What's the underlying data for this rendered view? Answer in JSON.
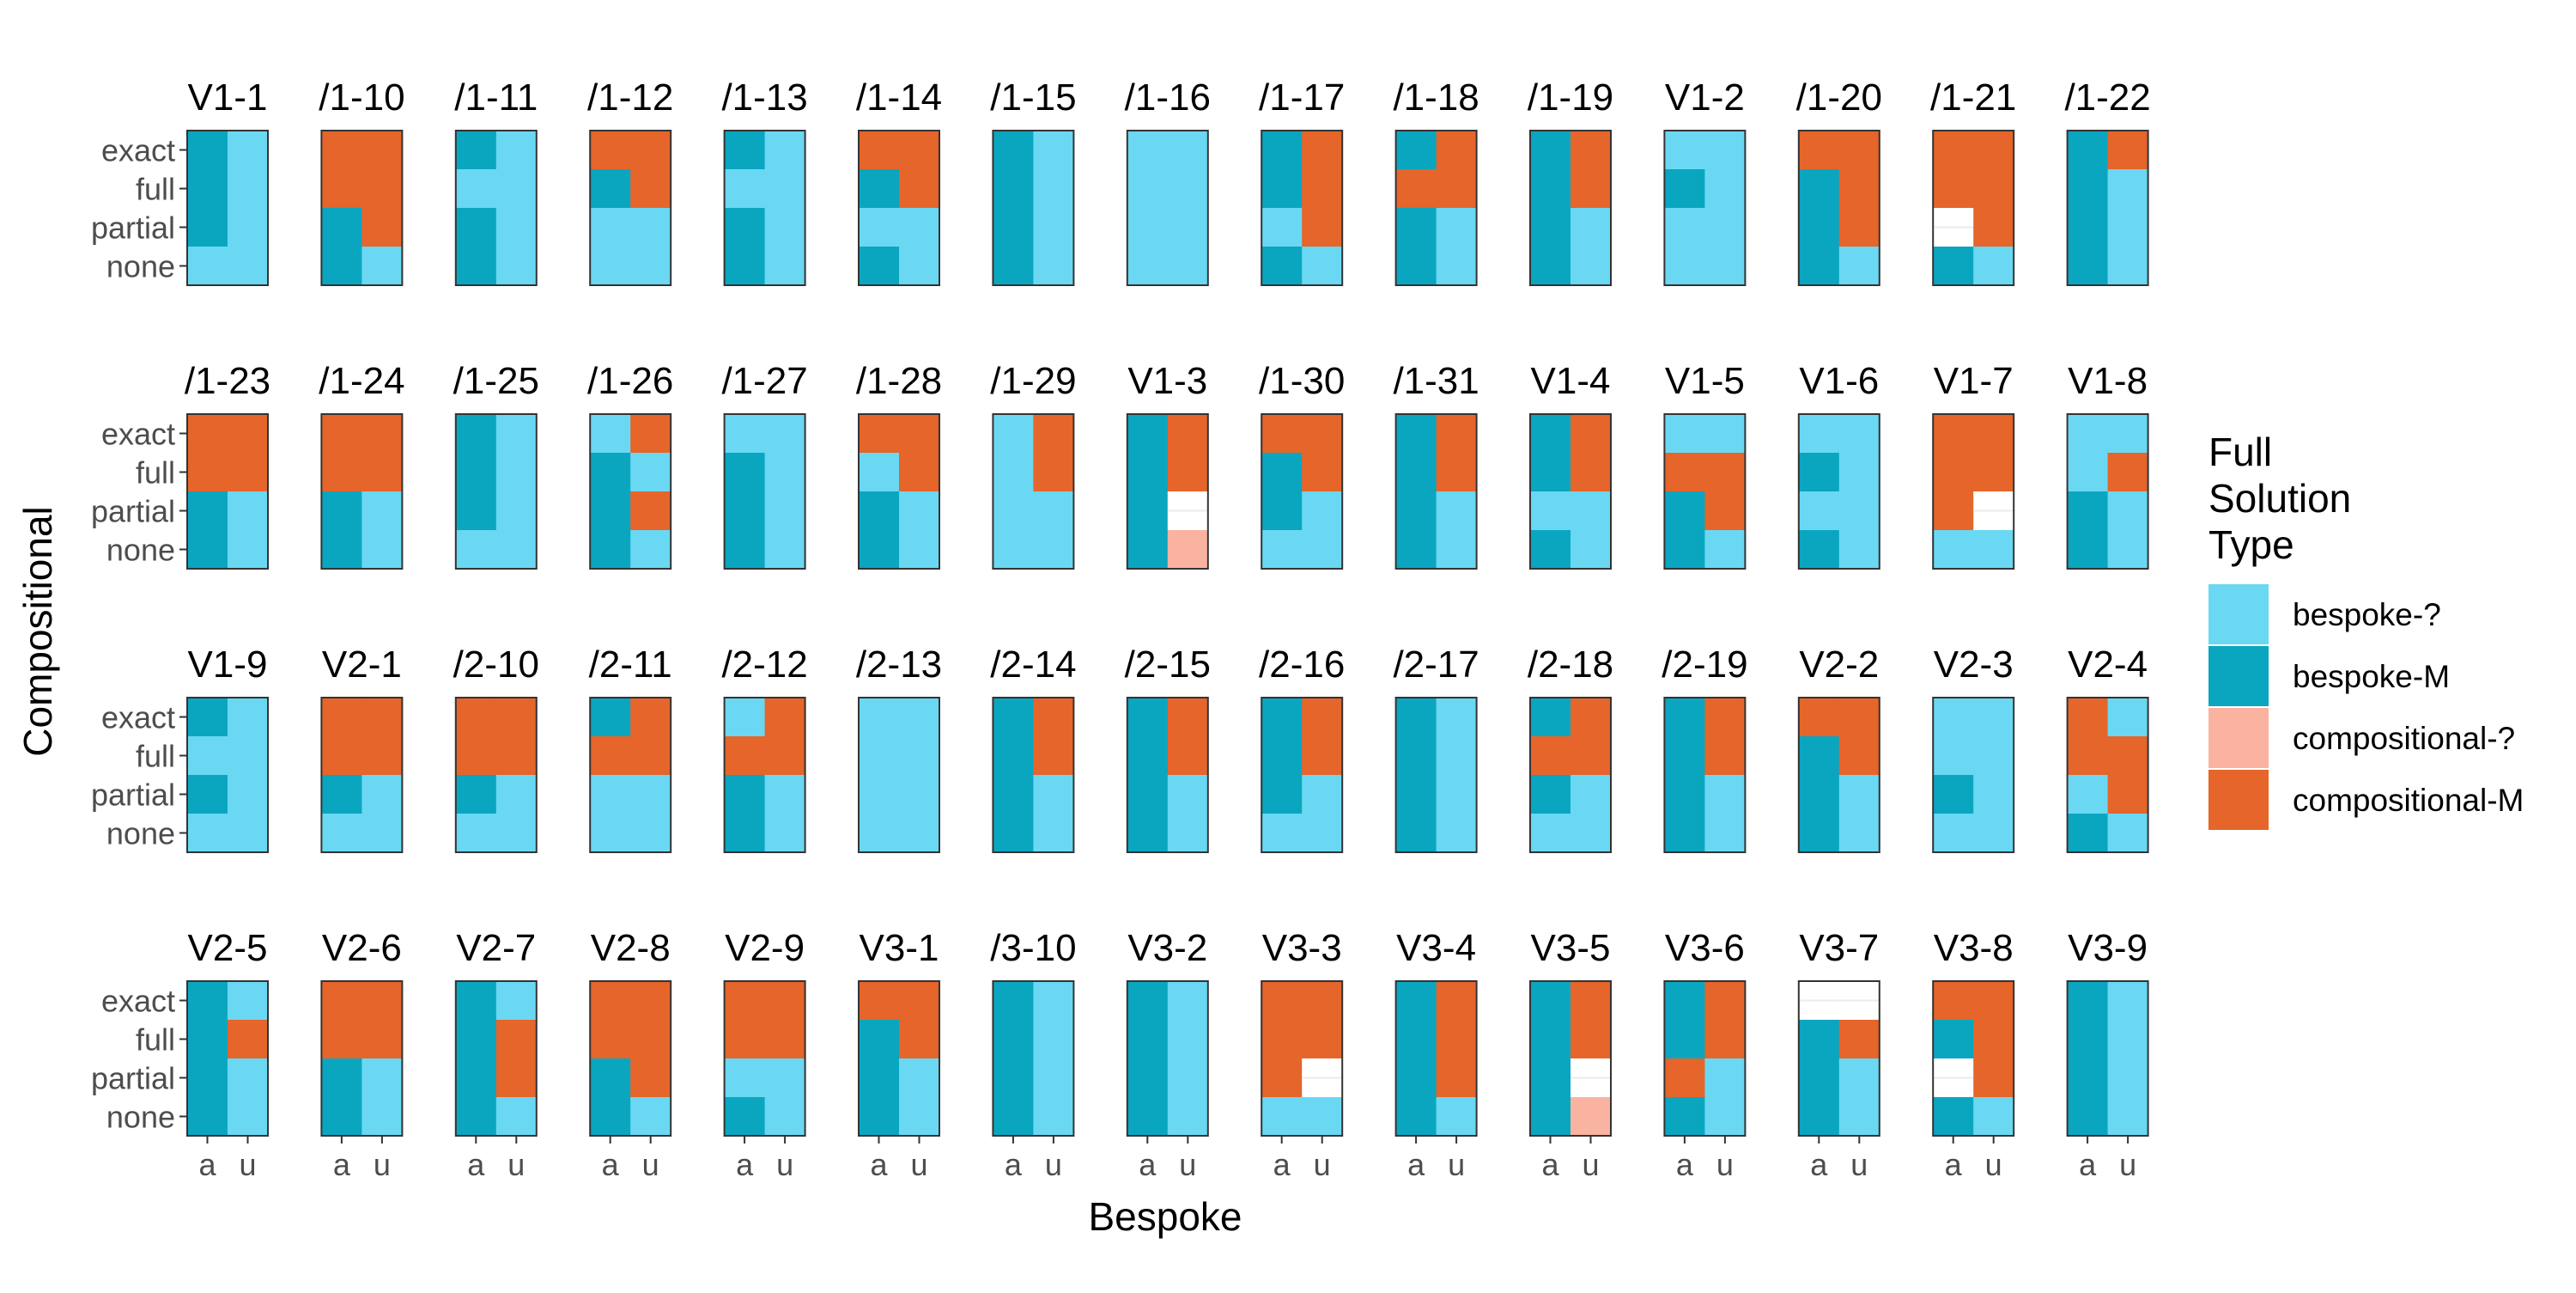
{
  "chart_data": {
    "type": "heatmap",
    "xlabel": "Bespoke",
    "ylabel": "Compositional",
    "x_categories": [
      "a",
      "u"
    ],
    "y_categories": [
      "exact",
      "full",
      "partial",
      "none"
    ],
    "legend": {
      "title_lines": [
        "Full",
        "Solution",
        "Type"
      ],
      "placement": "right",
      "entries": [
        {
          "key": "bespoke-?",
          "label": "bespoke-?",
          "color": "#6ad8f2"
        },
        {
          "key": "bespoke-M",
          "label": "bespoke-M",
          "color": "#0aa6c0"
        },
        {
          "key": "compositional-?",
          "label": "compositional-?",
          "color": "#fbb3a1"
        },
        {
          "key": "compositional-M",
          "label": "compositional-M",
          "color": "#e5652a"
        }
      ]
    },
    "cell_code_legend": {
      "L": "bespoke-?",
      "D": "bespoke-M",
      "P": "compositional-?",
      "O": "compositional-M",
      "W": "missing"
    },
    "cell_order_note": "each cells string lists rows exact, full, partial, none; each row gives columns a then u",
    "facets": [
      {
        "label": "V1-1",
        "cells": [
          "DL",
          "DL",
          "DL",
          "LL"
        ]
      },
      {
        "label": "/1-10",
        "cells": [
          "OO",
          "OO",
          "DO",
          "DL"
        ]
      },
      {
        "label": "/1-11",
        "cells": [
          "DL",
          "LL",
          "DL",
          "DL"
        ]
      },
      {
        "label": "/1-12",
        "cells": [
          "OO",
          "DO",
          "LL",
          "LL"
        ]
      },
      {
        "label": "/1-13",
        "cells": [
          "DL",
          "LL",
          "DL",
          "DL"
        ]
      },
      {
        "label": "/1-14",
        "cells": [
          "OO",
          "DO",
          "LL",
          "DL"
        ]
      },
      {
        "label": "/1-15",
        "cells": [
          "DL",
          "DL",
          "DL",
          "DL"
        ]
      },
      {
        "label": "/1-16",
        "cells": [
          "LL",
          "LL",
          "LL",
          "LL"
        ]
      },
      {
        "label": "/1-17",
        "cells": [
          "DO",
          "DO",
          "LO",
          "DL"
        ]
      },
      {
        "label": "/1-18",
        "cells": [
          "DO",
          "OO",
          "DL",
          "DL"
        ]
      },
      {
        "label": "/1-19",
        "cells": [
          "DO",
          "DO",
          "DL",
          "DL"
        ]
      },
      {
        "label": "V1-2",
        "cells": [
          "LL",
          "DL",
          "LL",
          "LL"
        ]
      },
      {
        "label": "/1-20",
        "cells": [
          "OO",
          "DO",
          "DO",
          "DL"
        ]
      },
      {
        "label": "/1-21",
        "cells": [
          "OO",
          "OO",
          "WO",
          "DL"
        ]
      },
      {
        "label": "/1-22",
        "cells": [
          "DO",
          "DL",
          "DL",
          "DL"
        ]
      },
      {
        "label": "/1-23",
        "cells": [
          "OO",
          "OO",
          "DL",
          "DL"
        ]
      },
      {
        "label": "/1-24",
        "cells": [
          "OO",
          "OO",
          "DL",
          "DL"
        ]
      },
      {
        "label": "/1-25",
        "cells": [
          "DL",
          "DL",
          "DL",
          "LL"
        ]
      },
      {
        "label": "/1-26",
        "cells": [
          "LO",
          "DL",
          "DO",
          "DL"
        ]
      },
      {
        "label": "/1-27",
        "cells": [
          "LL",
          "DL",
          "DL",
          "DL"
        ]
      },
      {
        "label": "/1-28",
        "cells": [
          "OO",
          "LO",
          "DL",
          "DL"
        ]
      },
      {
        "label": "/1-29",
        "cells": [
          "LO",
          "LO",
          "LL",
          "LL"
        ]
      },
      {
        "label": "V1-3",
        "cells": [
          "DO",
          "DO",
          "DW",
          "DP"
        ]
      },
      {
        "label": "/1-30",
        "cells": [
          "OO",
          "DO",
          "DL",
          "LL"
        ]
      },
      {
        "label": "/1-31",
        "cells": [
          "DO",
          "DO",
          "DL",
          "DL"
        ]
      },
      {
        "label": "V1-4",
        "cells": [
          "DO",
          "DO",
          "LL",
          "DL"
        ]
      },
      {
        "label": "V1-5",
        "cells": [
          "LL",
          "OO",
          "DO",
          "DL"
        ]
      },
      {
        "label": "V1-6",
        "cells": [
          "LL",
          "DL",
          "LL",
          "DL"
        ]
      },
      {
        "label": "V1-7",
        "cells": [
          "OO",
          "OO",
          "OW",
          "LL"
        ]
      },
      {
        "label": "V1-8",
        "cells": [
          "LL",
          "LO",
          "DL",
          "DL"
        ]
      },
      {
        "label": "V1-9",
        "cells": [
          "DL",
          "LL",
          "DL",
          "LL"
        ]
      },
      {
        "label": "V2-1",
        "cells": [
          "OO",
          "OO",
          "DL",
          "LL"
        ]
      },
      {
        "label": "/2-10",
        "cells": [
          "OO",
          "OO",
          "DL",
          "LL"
        ]
      },
      {
        "label": "/2-11",
        "cells": [
          "DO",
          "OO",
          "LL",
          "LL"
        ]
      },
      {
        "label": "/2-12",
        "cells": [
          "LO",
          "OO",
          "DL",
          "DL"
        ]
      },
      {
        "label": "/2-13",
        "cells": [
          "LL",
          "LL",
          "LL",
          "LL"
        ]
      },
      {
        "label": "/2-14",
        "cells": [
          "DO",
          "DO",
          "DL",
          "DL"
        ]
      },
      {
        "label": "/2-15",
        "cells": [
          "DO",
          "DO",
          "DL",
          "DL"
        ]
      },
      {
        "label": "/2-16",
        "cells": [
          "DO",
          "DO",
          "DL",
          "LL"
        ]
      },
      {
        "label": "/2-17",
        "cells": [
          "DL",
          "DL",
          "DL",
          "DL"
        ]
      },
      {
        "label": "/2-18",
        "cells": [
          "DO",
          "OO",
          "DL",
          "LL"
        ]
      },
      {
        "label": "/2-19",
        "cells": [
          "DO",
          "DO",
          "DL",
          "DL"
        ]
      },
      {
        "label": "V2-2",
        "cells": [
          "OO",
          "DO",
          "DL",
          "DL"
        ]
      },
      {
        "label": "V2-3",
        "cells": [
          "LL",
          "LL",
          "DL",
          "LL"
        ]
      },
      {
        "label": "V2-4",
        "cells": [
          "OL",
          "OO",
          "LO",
          "DL"
        ]
      },
      {
        "label": "V2-5",
        "cells": [
          "DL",
          "DO",
          "DL",
          "DL"
        ]
      },
      {
        "label": "V2-6",
        "cells": [
          "OO",
          "OO",
          "DL",
          "DL"
        ]
      },
      {
        "label": "V2-7",
        "cells": [
          "DL",
          "DO",
          "DO",
          "DL"
        ]
      },
      {
        "label": "V2-8",
        "cells": [
          "OO",
          "OO",
          "DO",
          "DL"
        ]
      },
      {
        "label": "V2-9",
        "cells": [
          "OO",
          "OO",
          "LL",
          "DL"
        ]
      },
      {
        "label": "V3-1",
        "cells": [
          "OO",
          "DO",
          "DL",
          "DL"
        ]
      },
      {
        "label": "/3-10",
        "cells": [
          "DL",
          "DL",
          "DL",
          "DL"
        ]
      },
      {
        "label": "V3-2",
        "cells": [
          "DL",
          "DL",
          "DL",
          "DL"
        ]
      },
      {
        "label": "V3-3",
        "cells": [
          "OO",
          "OO",
          "OW",
          "LL"
        ]
      },
      {
        "label": "V3-4",
        "cells": [
          "DO",
          "DO",
          "DO",
          "DL"
        ]
      },
      {
        "label": "V3-5",
        "cells": [
          "DO",
          "DO",
          "DW",
          "DP"
        ]
      },
      {
        "label": "V3-6",
        "cells": [
          "DO",
          "DO",
          "OL",
          "DL"
        ]
      },
      {
        "label": "V3-7",
        "cells": [
          "WW",
          "DO",
          "DL",
          "DL"
        ]
      },
      {
        "label": "V3-8",
        "cells": [
          "OO",
          "DO",
          "WO",
          "DL"
        ]
      },
      {
        "label": "V3-9",
        "cells": [
          "DL",
          "DL",
          "DL",
          "DL"
        ]
      }
    ]
  }
}
